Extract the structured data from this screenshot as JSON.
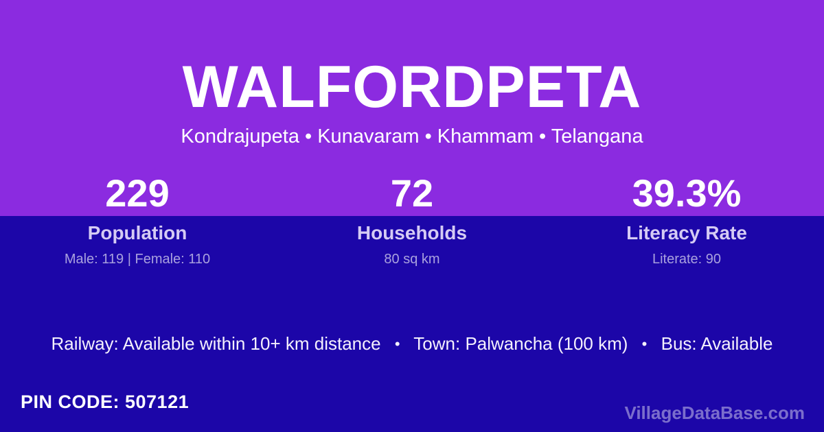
{
  "header": {
    "village_name": "WALFORDPETA",
    "breadcrumb": "Kondrajupeta • Kunavaram • Khammam • Telangana"
  },
  "stats": [
    {
      "value": "229",
      "label": "Population",
      "detail": "Male: 119 | Female: 110"
    },
    {
      "value": "72",
      "label": "Households",
      "detail": "80 sq km"
    },
    {
      "value": "39.3%",
      "label": "Literacy Rate",
      "detail": "Literate: 90"
    }
  ],
  "info": {
    "separator": "•",
    "parts": [
      "Railway: Available within 10+ km distance",
      "Town: Palwancha (100 km)",
      "Bus: Available"
    ]
  },
  "footer": {
    "pin_code": "PIN CODE: 507121",
    "brand": "VillageDataBase.com"
  },
  "colors": {
    "top_background": "#8B2BE0",
    "bottom_background": "#1C06A8",
    "title_text": "#FFFFFF",
    "stat_label_text": "#D5CBF4",
    "stat_detail_text": "rgba(255,255,255,0.62)",
    "brand_text": "rgba(255,255,255,0.42)"
  }
}
